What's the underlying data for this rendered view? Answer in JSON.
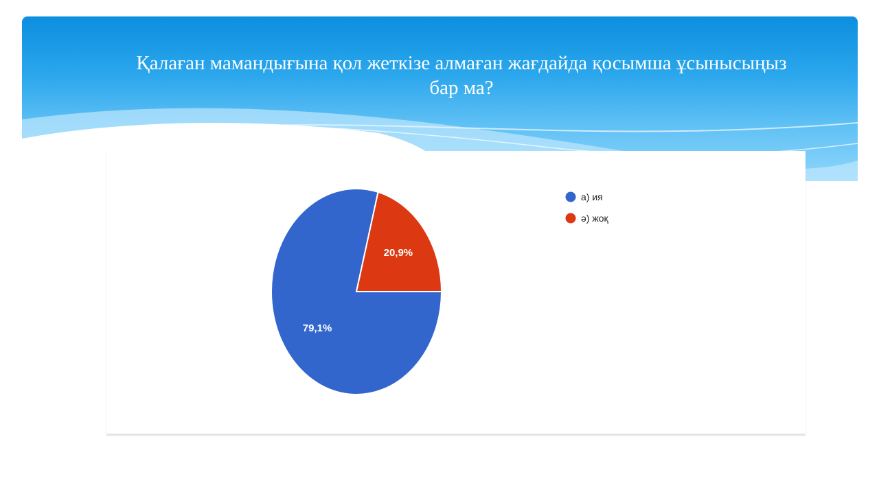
{
  "slide": {
    "title": "Қалаған мамандығына қол жеткізе алмаған жағдайда қосымша ұсынысыңыз\nбар  ма?"
  },
  "colors": {
    "header_top": "#0c8fdf",
    "header_bottom": "#8fd6fb",
    "slice_yes": "#3366cc",
    "slice_no": "#dc3912",
    "label_text": "#ffffff",
    "legend_text": "#222222"
  },
  "chart_data": {
    "type": "pie",
    "title": "",
    "slices": [
      {
        "label": "а) ия",
        "value": 79.1,
        "display": "79,1%",
        "color": "#3366cc"
      },
      {
        "label": "ә) жоқ",
        "value": 20.9,
        "display": "20,9%",
        "color": "#dc3912"
      }
    ],
    "legend": {
      "position": "top-right",
      "entries": [
        "а) ия",
        "ә) жоқ"
      ]
    }
  }
}
